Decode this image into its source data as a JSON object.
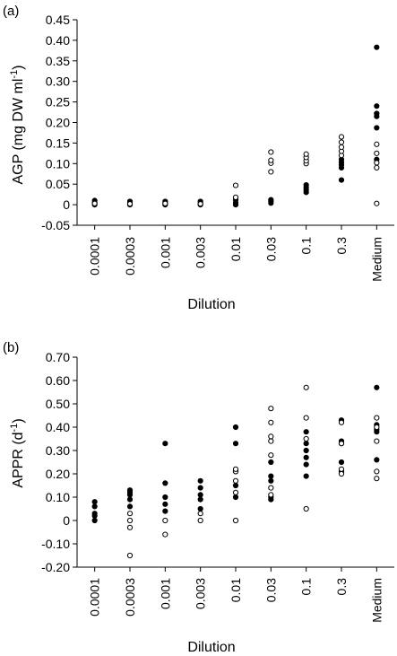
{
  "chart_data": [
    {
      "type": "scatter",
      "panel_label": "(a)",
      "xlabel": "Dilution",
      "ylabel_main": "AGP (mg DW ml",
      "ylabel_sup": "-1",
      "ylabel_close": ")",
      "categories": [
        "0.0001",
        "0.0003",
        "0.001",
        "0.003",
        "0.01",
        "0.03",
        "0.1",
        "0.3",
        "Medium"
      ],
      "ylim": [
        -0.05,
        0.45
      ],
      "yticks": [
        -0.05,
        0,
        0.05,
        0.1,
        0.15,
        0.2,
        0.25,
        0.3,
        0.35,
        0.4,
        0.45
      ],
      "ytick_labels": [
        "-0.05",
        "0",
        "0.05",
        "0.10",
        "0.15",
        "0.20",
        "0.25",
        "0.30",
        "0.35",
        "0.40",
        "0.45"
      ],
      "grid": false,
      "legend": "none",
      "series": [
        {
          "marker": "filled",
          "points": [
            [
              0,
              0.0
            ],
            [
              0,
              0.005
            ],
            [
              0,
              0.01
            ],
            [
              1,
              0.0
            ],
            [
              1,
              0.004
            ],
            [
              1,
              0.008
            ],
            [
              2,
              0.0
            ],
            [
              2,
              0.004
            ],
            [
              2,
              0.008
            ],
            [
              3,
              0.0
            ],
            [
              3,
              0.004
            ],
            [
              3,
              0.008
            ],
            [
              4,
              0.0
            ],
            [
              4,
              0.005
            ],
            [
              4,
              0.012
            ],
            [
              5,
              0.004
            ],
            [
              5,
              0.008
            ],
            [
              5,
              0.012
            ],
            [
              6,
              0.03
            ],
            [
              6,
              0.036
            ],
            [
              6,
              0.042
            ],
            [
              6,
              0.048
            ],
            [
              7,
              0.06
            ],
            [
              7,
              0.09
            ],
            [
              7,
              0.097
            ],
            [
              7,
              0.103
            ],
            [
              7,
              0.11
            ],
            [
              8,
              0.11
            ],
            [
              8,
              0.187
            ],
            [
              8,
              0.215
            ],
            [
              8,
              0.222
            ],
            [
              8,
              0.24
            ],
            [
              8,
              0.383
            ]
          ]
        },
        {
          "marker": "open",
          "points": [
            [
              0,
              0.003
            ],
            [
              1,
              0.002
            ],
            [
              2,
              0.003
            ],
            [
              3,
              0.002
            ],
            [
              4,
              0.018
            ],
            [
              4,
              0.047
            ],
            [
              5,
              0.08
            ],
            [
              5,
              0.101
            ],
            [
              5,
              0.108
            ],
            [
              5,
              0.128
            ],
            [
              6,
              0.1
            ],
            [
              6,
              0.107
            ],
            [
              6,
              0.115
            ],
            [
              6,
              0.123
            ],
            [
              7,
              0.12
            ],
            [
              7,
              0.13
            ],
            [
              7,
              0.14
            ],
            [
              7,
              0.152
            ],
            [
              7,
              0.165
            ],
            [
              8,
              0.003
            ],
            [
              8,
              0.09
            ],
            [
              8,
              0.102
            ],
            [
              8,
              0.125
            ],
            [
              8,
              0.147
            ]
          ]
        }
      ]
    },
    {
      "type": "scatter",
      "panel_label": "(b)",
      "xlabel": "Dilution",
      "ylabel_main": "APPR (d",
      "ylabel_sup": "-1",
      "ylabel_close": ")",
      "categories": [
        "0.0001",
        "0.0003",
        "0.001",
        "0.003",
        "0.01",
        "0.03",
        "0.1",
        "0.3",
        "Medium"
      ],
      "ylim": [
        -0.2,
        0.7
      ],
      "yticks": [
        -0.2,
        -0.1,
        0,
        0.1,
        0.2,
        0.3,
        0.4,
        0.5,
        0.6,
        0.7
      ],
      "ytick_labels": [
        "-0.20",
        "-0.10",
        "0",
        "0.10",
        "0.20",
        "0.30",
        "0.40",
        "0.50",
        "0.60",
        "0.70"
      ],
      "grid": false,
      "legend": "none",
      "series": [
        {
          "marker": "filled",
          "points": [
            [
              0,
              0.0
            ],
            [
              0,
              0.02
            ],
            [
              0,
              0.03
            ],
            [
              0,
              0.06
            ],
            [
              0,
              0.08
            ],
            [
              1,
              0.06
            ],
            [
              1,
              0.09
            ],
            [
              1,
              0.11
            ],
            [
              1,
              0.12
            ],
            [
              1,
              0.13
            ],
            [
              2,
              0.04
            ],
            [
              2,
              0.07
            ],
            [
              2,
              0.1
            ],
            [
              2,
              0.16
            ],
            [
              2,
              0.33
            ],
            [
              3,
              0.05
            ],
            [
              3,
              0.09
            ],
            [
              3,
              0.11
            ],
            [
              3,
              0.14
            ],
            [
              3,
              0.17
            ],
            [
              4,
              0.1
            ],
            [
              4,
              0.15
            ],
            [
              4,
              0.21
            ],
            [
              4,
              0.33
            ],
            [
              4,
              0.4
            ],
            [
              5,
              0.09
            ],
            [
              5,
              0.1
            ],
            [
              5,
              0.17
            ],
            [
              5,
              0.19
            ],
            [
              5,
              0.25
            ],
            [
              6,
              0.19
            ],
            [
              6,
              0.24
            ],
            [
              6,
              0.27
            ],
            [
              6,
              0.3
            ],
            [
              6,
              0.33
            ],
            [
              6,
              0.38
            ],
            [
              7,
              0.21
            ],
            [
              7,
              0.25
            ],
            [
              7,
              0.33
            ],
            [
              7,
              0.34
            ],
            [
              7,
              0.43
            ],
            [
              8,
              0.26
            ],
            [
              8,
              0.38
            ],
            [
              8,
              0.39
            ],
            [
              8,
              0.41
            ],
            [
              8,
              0.57
            ]
          ]
        },
        {
          "marker": "open",
          "points": [
            [
              1,
              -0.15
            ],
            [
              1,
              -0.03
            ],
            [
              1,
              0.0
            ],
            [
              1,
              0.03
            ],
            [
              2,
              -0.06
            ],
            [
              2,
              0.0
            ],
            [
              3,
              0.0
            ],
            [
              3,
              0.03
            ],
            [
              4,
              0.0
            ],
            [
              4,
              0.12
            ],
            [
              4,
              0.17
            ],
            [
              4,
              0.21
            ],
            [
              4,
              0.22
            ],
            [
              5,
              0.11
            ],
            [
              5,
              0.14
            ],
            [
              5,
              0.28
            ],
            [
              5,
              0.34
            ],
            [
              5,
              0.36
            ],
            [
              5,
              0.42
            ],
            [
              5,
              0.48
            ],
            [
              6,
              0.05
            ],
            [
              6,
              0.35
            ],
            [
              6,
              0.44
            ],
            [
              6,
              0.57
            ],
            [
              7,
              0.2
            ],
            [
              7,
              0.22
            ],
            [
              7,
              0.33
            ],
            [
              7,
              0.42
            ],
            [
              8,
              0.18
            ],
            [
              8,
              0.21
            ],
            [
              8,
              0.34
            ],
            [
              8,
              0.4
            ],
            [
              8,
              0.44
            ]
          ]
        }
      ]
    }
  ]
}
